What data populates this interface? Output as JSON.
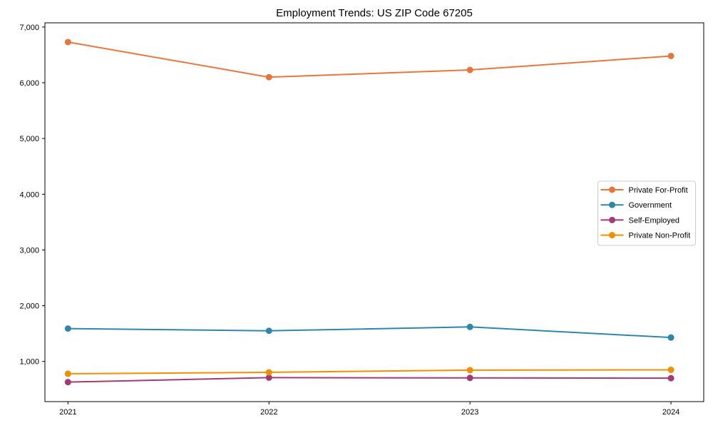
{
  "chart_data": {
    "type": "line",
    "title": "Employment Trends: US ZIP Code 67205",
    "xlabel": "",
    "ylabel": "",
    "categories": [
      "2021",
      "2022",
      "2023",
      "2024"
    ],
    "x": [
      2021,
      2022,
      2023,
      2024
    ],
    "series": [
      {
        "name": "Private For-Profit",
        "color": "#E8763C",
        "values": [
          6730,
          6100,
          6230,
          6480
        ]
      },
      {
        "name": "Government",
        "color": "#2E86AB",
        "values": [
          1590,
          1550,
          1620,
          1430
        ]
      },
      {
        "name": "Self-Employed",
        "color": "#A23B72",
        "values": [
          630,
          710,
          705,
          700
        ]
      },
      {
        "name": "Private Non-Profit",
        "color": "#F18F01",
        "values": [
          780,
          805,
          845,
          850
        ]
      }
    ],
    "ylim": [
      280,
      7075
    ],
    "yticks": [
      1000,
      2000,
      3000,
      4000,
      5000,
      6000,
      7000
    ],
    "ytick_labels": [
      "1,000",
      "2,000",
      "3,000",
      "4,000",
      "5,000",
      "6,000",
      "7,000"
    ],
    "legend_position": "center right",
    "grid": false,
    "marker": "circle",
    "axis_color": "#000000",
    "legend_border_color": "#cccccc",
    "background_color": "#ffffff"
  }
}
